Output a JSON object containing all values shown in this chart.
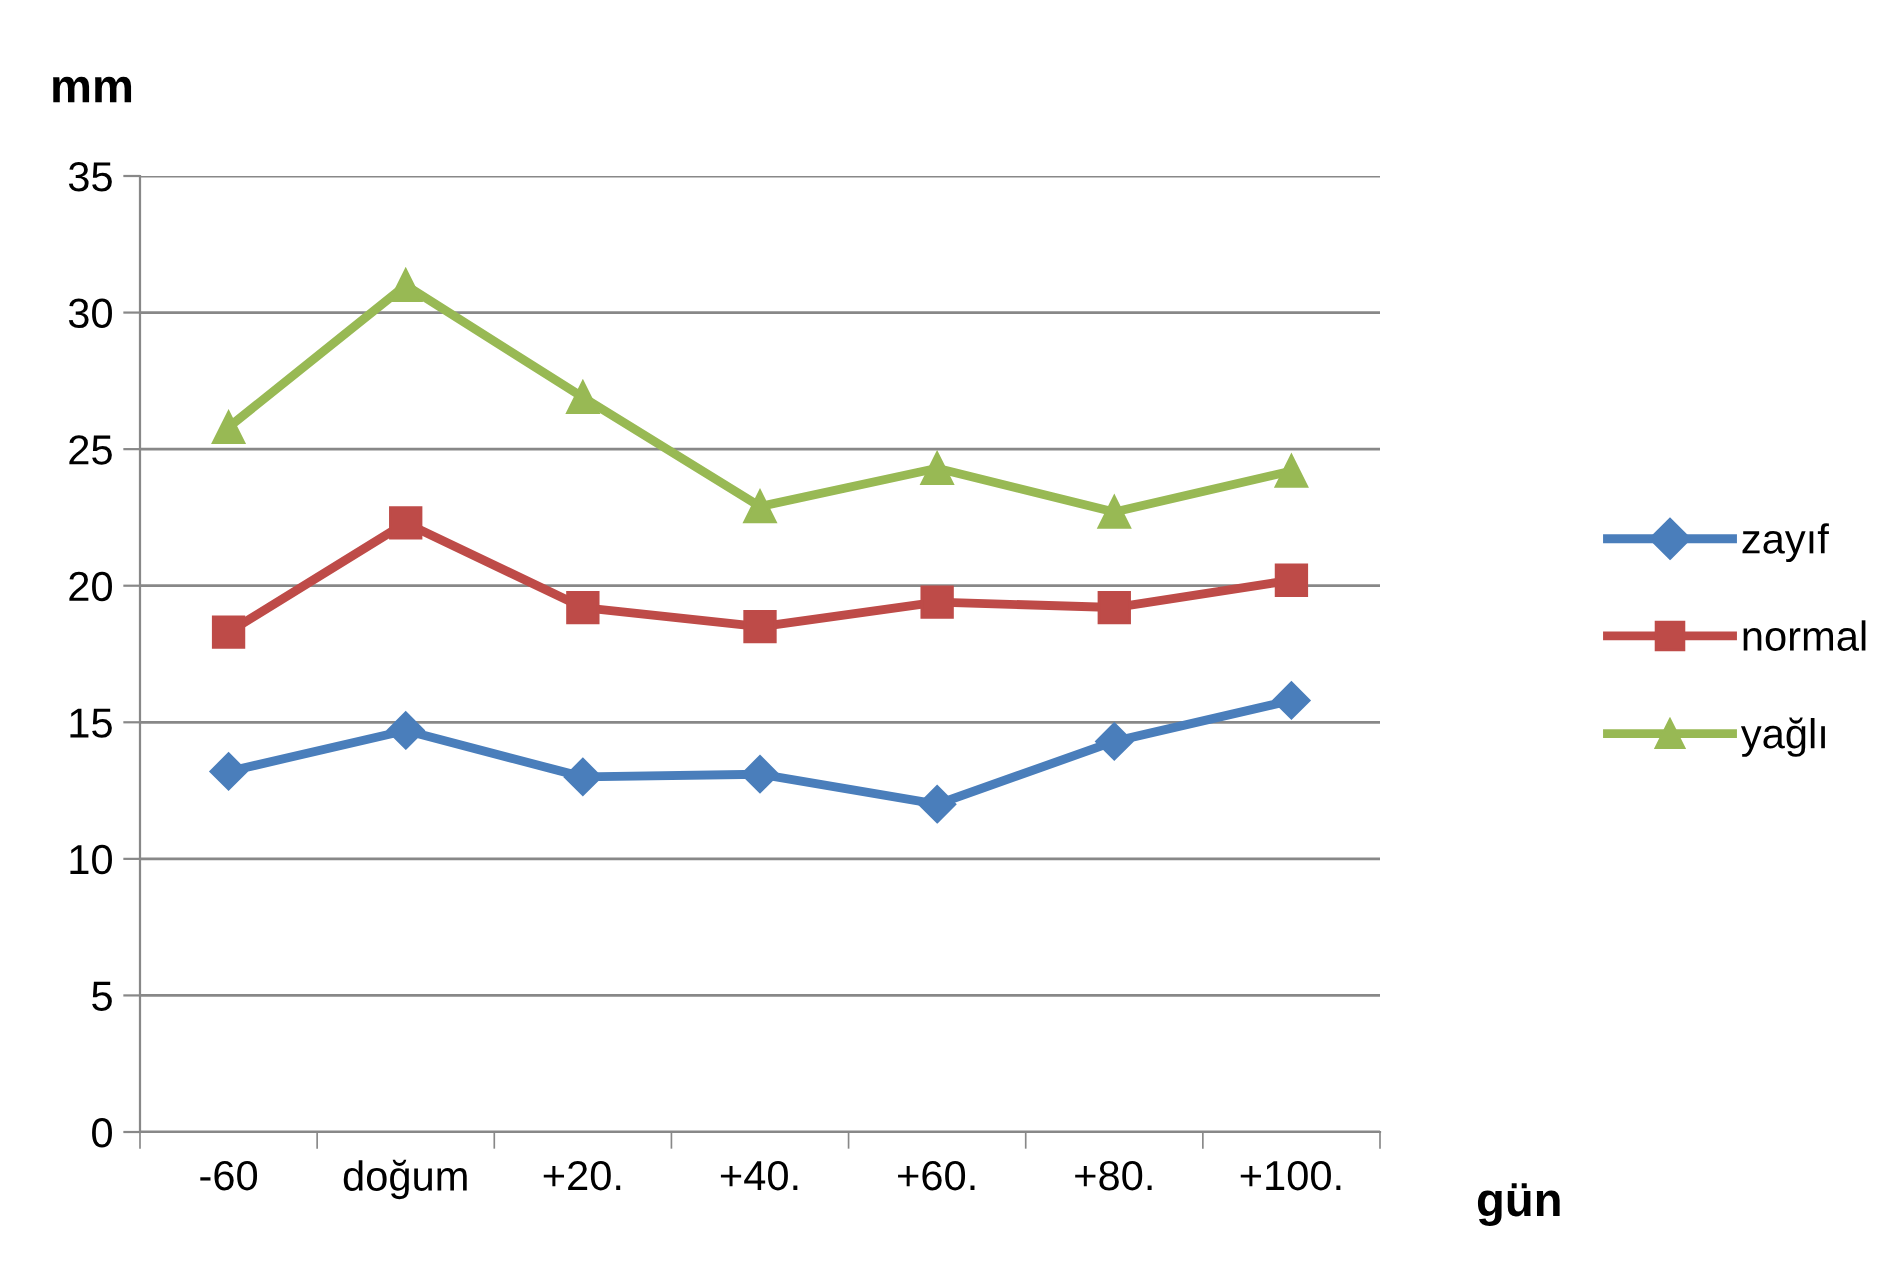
{
  "chart_data": {
    "type": "line",
    "ylabel": "mm",
    "xlabel": "gün",
    "categories": [
      "-60",
      "doğum",
      "+20.",
      "+40.",
      "+60.",
      "+80.",
      "+100."
    ],
    "series": [
      {
        "name": "zayıf",
        "color": "#4a7ebb",
        "marker": "diamond",
        "values": [
          13.2,
          14.7,
          13.0,
          13.1,
          12.0,
          14.3,
          15.8
        ]
      },
      {
        "name": "normal",
        "color": "#be4b48",
        "marker": "square",
        "values": [
          18.3,
          22.3,
          19.2,
          18.5,
          19.4,
          19.2,
          20.2
        ]
      },
      {
        "name": "yağlı",
        "color": "#98b954",
        "marker": "triangle",
        "values": [
          25.8,
          31.0,
          26.9,
          22.9,
          24.3,
          22.7,
          24.2
        ]
      }
    ],
    "ylim": [
      0,
      35
    ],
    "yticks": [
      0,
      5,
      10,
      15,
      20,
      25,
      30,
      35
    ],
    "grid": "y",
    "legend": "right",
    "line_style": "solid"
  }
}
